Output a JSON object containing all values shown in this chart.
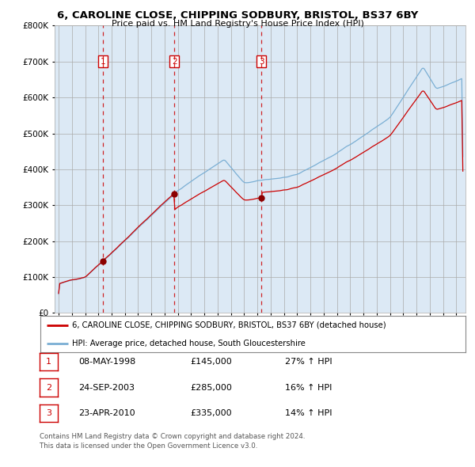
{
  "title": "6, CAROLINE CLOSE, CHIPPING SODBURY, BRISTOL, BS37 6BY",
  "subtitle": "Price paid vs. HM Land Registry's House Price Index (HPI)",
  "legend_line1": "6, CAROLINE CLOSE, CHIPPING SODBURY, BRISTOL, BS37 6BY (detached house)",
  "legend_line2": "HPI: Average price, detached house, South Gloucestershire",
  "sale_color": "#cc0000",
  "hpi_color": "#7bafd4",
  "chart_bg": "#dce9f5",
  "sale_dates_decimal": [
    1998.36,
    2003.73,
    2010.31
  ],
  "sale_prices": [
    145000,
    285000,
    335000
  ],
  "sale_labels": [
    "1",
    "2",
    "3"
  ],
  "table_rows": [
    {
      "num": "1",
      "date": "08-MAY-1998",
      "price": "£145,000",
      "change": "27% ↑ HPI"
    },
    {
      "num": "2",
      "date": "24-SEP-2003",
      "price": "£285,000",
      "change": "16% ↑ HPI"
    },
    {
      "num": "3",
      "date": "23-APR-2010",
      "price": "£335,000",
      "change": "14% ↑ HPI"
    }
  ],
  "footnote1": "Contains HM Land Registry data © Crown copyright and database right 2024.",
  "footnote2": "This data is licensed under the Open Government Licence v3.0.",
  "ylim": [
    0,
    800000
  ],
  "yticks": [
    0,
    100000,
    200000,
    300000,
    400000,
    500000,
    600000,
    700000,
    800000
  ],
  "xmin": 1994.7,
  "xmax": 2025.7,
  "background_color": "#ffffff",
  "grid_color": "#aaaaaa"
}
